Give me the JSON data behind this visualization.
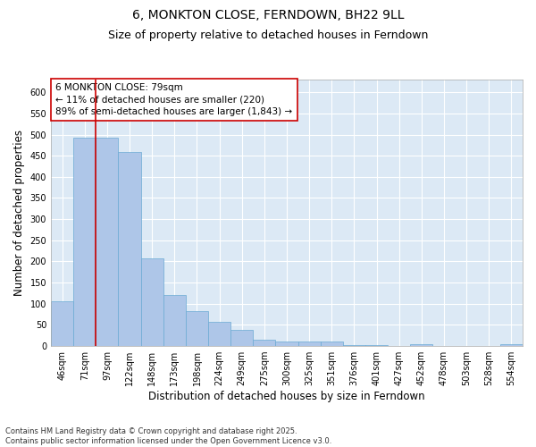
{
  "title1": "6, MONKTON CLOSE, FERNDOWN, BH22 9LL",
  "title2": "Size of property relative to detached houses in Ferndown",
  "xlabel": "Distribution of detached houses by size in Ferndown",
  "ylabel": "Number of detached properties",
  "categories": [
    "46sqm",
    "71sqm",
    "97sqm",
    "122sqm",
    "148sqm",
    "173sqm",
    "198sqm",
    "224sqm",
    "249sqm",
    "275sqm",
    "300sqm",
    "325sqm",
    "351sqm",
    "376sqm",
    "401sqm",
    "427sqm",
    "452sqm",
    "478sqm",
    "503sqm",
    "528sqm",
    "554sqm"
  ],
  "values": [
    105,
    492,
    492,
    458,
    207,
    120,
    82,
    57,
    38,
    14,
    10,
    11,
    11,
    2,
    2,
    1,
    5,
    0,
    0,
    0,
    5
  ],
  "bar_color": "#aec6e8",
  "bar_edge_color": "#6aaad4",
  "vline_color": "#cc0000",
  "vline_x": 1.5,
  "annotation_text": "6 MONKTON CLOSE: 79sqm\n← 11% of detached houses are smaller (220)\n89% of semi-detached houses are larger (1,843) →",
  "annotation_box_color": "#ffffff",
  "annotation_box_edge": "#cc0000",
  "ylim": [
    0,
    630
  ],
  "yticks": [
    0,
    50,
    100,
    150,
    200,
    250,
    300,
    350,
    400,
    450,
    500,
    550,
    600
  ],
  "plot_bg_color": "#dce9f5",
  "footer": "Contains HM Land Registry data © Crown copyright and database right 2025.\nContains public sector information licensed under the Open Government Licence v3.0.",
  "title_fontsize": 10,
  "subtitle_fontsize": 9,
  "tick_fontsize": 7,
  "label_fontsize": 8.5,
  "annotation_fontsize": 7.5,
  "footer_fontsize": 6
}
